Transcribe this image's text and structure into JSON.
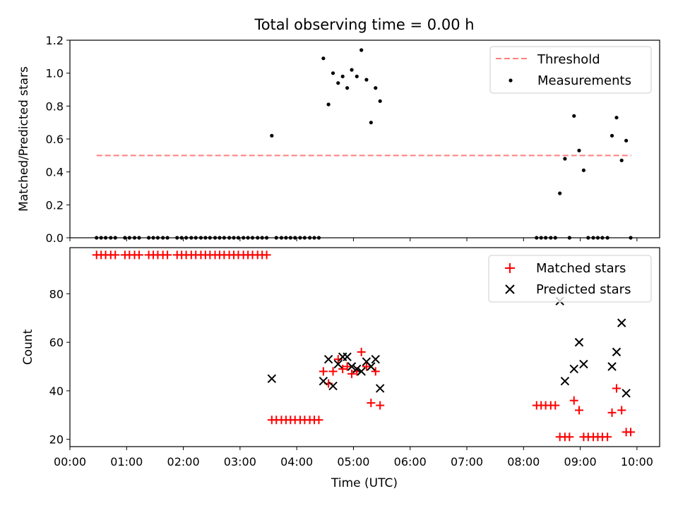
{
  "chart_data": [
    {
      "type": "scatter",
      "title": "Total observing time = 0.00 h",
      "xlabel": "",
      "ylabel": "Matched/Predicted stars",
      "ylim": [
        0,
        1.2
      ],
      "yticks": [
        "0.0",
        "0.2",
        "0.4",
        "0.6",
        "0.8",
        "1.0",
        "1.2"
      ],
      "legend_position": "top-right",
      "threshold": {
        "name": "Threshold",
        "value": 0.5,
        "x_start": 0.47,
        "x_end": 9.9,
        "color": "#ff7f7f",
        "style": "dashed"
      },
      "series": [
        {
          "name": "Measurements",
          "color": "#000000",
          "marker": "dot",
          "x": [
            0.47,
            0.55,
            0.63,
            0.72,
            0.8,
            0.97,
            1.05,
            1.14,
            1.22,
            1.39,
            1.47,
            1.55,
            1.64,
            1.72,
            1.89,
            1.97,
            2.05,
            2.14,
            2.22,
            2.31,
            2.39,
            2.47,
            2.56,
            2.64,
            2.72,
            2.81,
            2.89,
            2.97,
            3.06,
            3.14,
            3.22,
            3.31,
            3.39,
            3.47,
            3.56,
            3.64,
            3.73,
            3.81,
            3.89,
            3.97,
            4.06,
            4.14,
            4.23,
            4.31,
            4.39,
            4.47,
            4.56,
            4.64,
            4.73,
            4.81,
            4.89,
            4.97,
            5.06,
            5.14,
            5.23,
            5.31,
            5.39,
            5.47,
            8.23,
            8.31,
            8.39,
            8.48,
            8.56,
            8.64,
            8.73,
            8.81,
            8.89,
            8.98,
            9.06,
            9.14,
            9.23,
            9.31,
            9.39,
            9.48,
            9.56,
            9.64,
            9.73,
            9.81,
            9.89
          ],
          "y": [
            0,
            0,
            0,
            0,
            0,
            0,
            0,
            0,
            0,
            0,
            0,
            0,
            0,
            0,
            0,
            0,
            0,
            0,
            0,
            0,
            0,
            0,
            0,
            0,
            0,
            0,
            0,
            0,
            0,
            0,
            0,
            0,
            0,
            0,
            0.62,
            0,
            0,
            0,
            0,
            0,
            0,
            0,
            0,
            0,
            0,
            1.09,
            0.81,
            1.0,
            0.94,
            0.98,
            0.91,
            1.02,
            0.98,
            1.14,
            0.96,
            0.7,
            0.91,
            0.83,
            0,
            0,
            0,
            0,
            0,
            0.27,
            0.48,
            0,
            0.74,
            0.53,
            0.41,
            0,
            0,
            0,
            0,
            0,
            0.62,
            0.73,
            0.47,
            0.59,
            0
          ]
        }
      ]
    },
    {
      "type": "scatter",
      "title": "",
      "xlabel": "Time (UTC)",
      "ylabel": "Count",
      "xlim": [
        0,
        10.4
      ],
      "ylim": [
        17,
        99
      ],
      "yticks": [
        20,
        40,
        60,
        80
      ],
      "xticks": [
        0,
        1,
        2,
        3,
        4,
        5,
        6,
        7,
        8,
        9,
        10
      ],
      "xtick_labels": [
        "00:00",
        "01:00",
        "02:00",
        "03:00",
        "04:00",
        "05:00",
        "06:00",
        "07:00",
        "08:00",
        "09:00",
        "10:00"
      ],
      "legend_position": "top-right",
      "series": [
        {
          "name": "Matched stars",
          "color": "#ff0000",
          "marker": "plus",
          "x": [
            0.47,
            0.55,
            0.63,
            0.72,
            0.8,
            0.97,
            1.05,
            1.14,
            1.22,
            1.39,
            1.47,
            1.55,
            1.64,
            1.72,
            1.89,
            1.97,
            2.05,
            2.14,
            2.22,
            2.31,
            2.39,
            2.47,
            2.56,
            2.64,
            2.72,
            2.81,
            2.89,
            2.97,
            3.06,
            3.14,
            3.22,
            3.31,
            3.39,
            3.47,
            3.56,
            3.64,
            3.73,
            3.81,
            3.89,
            3.97,
            4.06,
            4.14,
            4.23,
            4.31,
            4.39,
            4.47,
            4.56,
            4.64,
            4.73,
            4.81,
            4.89,
            4.97,
            5.06,
            5.14,
            5.23,
            5.31,
            5.39,
            5.47,
            8.23,
            8.31,
            8.39,
            8.48,
            8.56,
            8.64,
            8.73,
            8.81,
            8.89,
            8.98,
            9.06,
            9.14,
            9.23,
            9.31,
            9.39,
            9.48,
            9.56,
            9.64,
            9.73,
            9.81,
            9.89
          ],
          "y": [
            96,
            96,
            96,
            96,
            96,
            96,
            96,
            96,
            96,
            96,
            96,
            96,
            96,
            96,
            96,
            96,
            96,
            96,
            96,
            96,
            96,
            96,
            96,
            96,
            96,
            96,
            96,
            96,
            96,
            96,
            96,
            96,
            96,
            96,
            28,
            28,
            28,
            28,
            28,
            28,
            28,
            28,
            28,
            28,
            28,
            48,
            43,
            48,
            53,
            49,
            50,
            47,
            48,
            56,
            50,
            35,
            48,
            34,
            34,
            34,
            34,
            34,
            34,
            21,
            21,
            21,
            36,
            32,
            21,
            21,
            21,
            21,
            21,
            21,
            31,
            41,
            32,
            23,
            23
          ]
        },
        {
          "name": "Predicted stars",
          "color": "#000000",
          "marker": "x",
          "x": [
            3.56,
            4.47,
            4.56,
            4.64,
            4.73,
            4.81,
            4.89,
            4.97,
            5.06,
            5.14,
            5.23,
            5.31,
            5.39,
            5.47,
            8.64,
            8.73,
            8.89,
            8.98,
            9.06,
            9.56,
            9.64,
            9.73,
            9.81
          ],
          "y": [
            45,
            44,
            53,
            42,
            51,
            54,
            54,
            50,
            49,
            48,
            52,
            50,
            53,
            41,
            77,
            44,
            49,
            60,
            51,
            50,
            56,
            68,
            39
          ]
        }
      ]
    }
  ]
}
